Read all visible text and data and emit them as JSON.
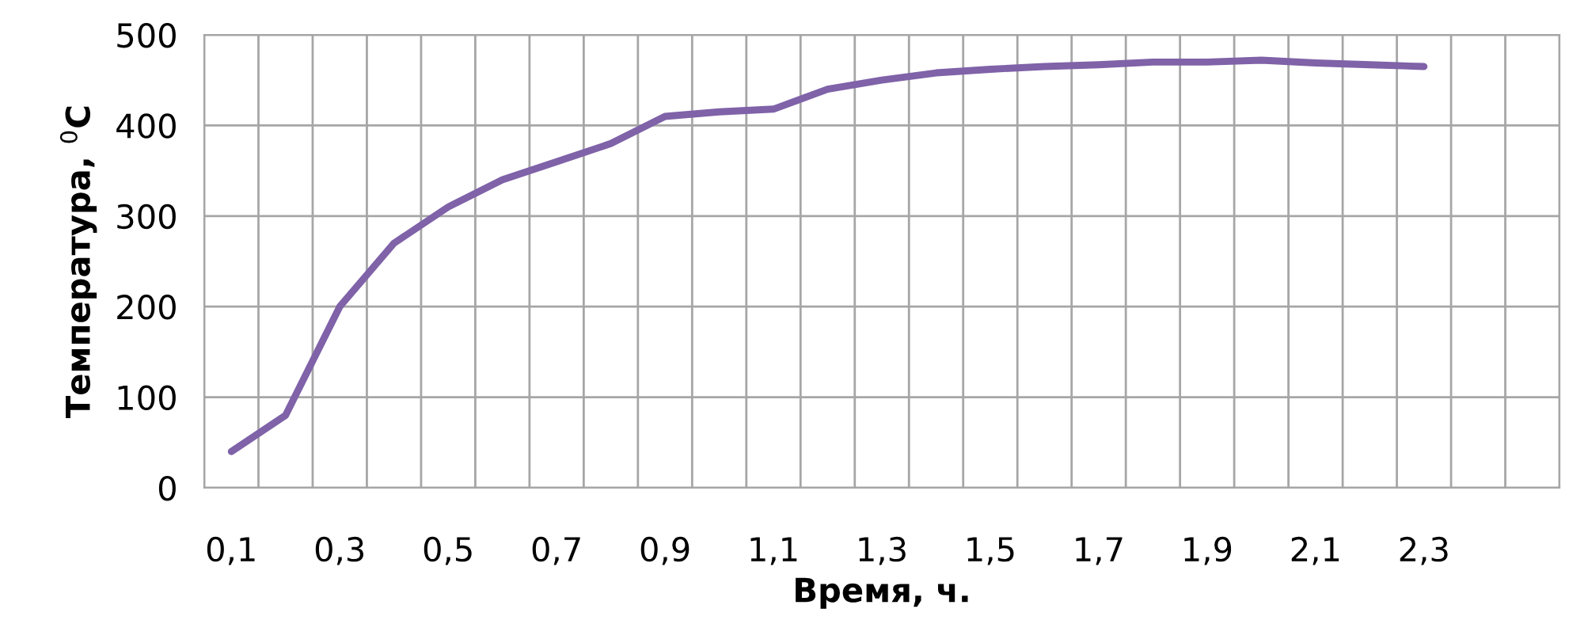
{
  "chart_data": {
    "type": "line",
    "xlabel": "Время, ч.",
    "ylabel": "Температура, $^{0}$C",
    "categories": [
      "0,1",
      null,
      "0,3",
      null,
      "0,5",
      null,
      "0,7",
      null,
      "0,9",
      null,
      "1,1",
      null,
      "1,3",
      null,
      "1,5",
      null,
      "1,7",
      null,
      "1,9",
      null,
      "2,1",
      null,
      "2,3",
      null,
      null
    ],
    "series": [
      {
        "color": "#7f62a8",
        "values": [
          40,
          80,
          200,
          270,
          310,
          340,
          360,
          380,
          410,
          415,
          418,
          440,
          450,
          458,
          462,
          465,
          467,
          470,
          470,
          472,
          469,
          467,
          465,
          null,
          null
        ]
      }
    ],
    "ylim": [
      0,
      500
    ],
    "yticks": [
      0,
      100,
      200,
      300,
      400,
      500
    ],
    "grid": true,
    "marker": "none",
    "line_style": "solid"
  }
}
